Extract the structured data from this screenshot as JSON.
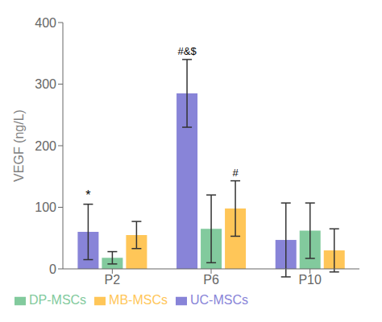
{
  "chart_data": {
    "type": "bar",
    "categories": [
      "P2",
      "P6",
      "P10"
    ],
    "series": [
      {
        "name": "UC-MSCs",
        "color": "#8884d8",
        "values": [
          60,
          285,
          47
        ],
        "errors": [
          45,
          55,
          60
        ]
      },
      {
        "name": "DP-MSCs",
        "color": "#82ca9d",
        "values": [
          18,
          65,
          62
        ],
        "errors": [
          10,
          55,
          45
        ]
      },
      {
        "name": "MB-MSCs",
        "color": "#ffc658",
        "values": [
          55,
          98,
          30
        ],
        "errors": [
          22,
          45,
          35
        ]
      }
    ],
    "annotations": [
      {
        "text": "*",
        "category": "P2",
        "series": "UC-MSCs"
      },
      {
        "text": "#&$",
        "category": "P6",
        "series": "UC-MSCs"
      },
      {
        "text": "#",
        "category": "P6",
        "series": "MB-MSCs"
      }
    ],
    "ylabel": "VEGF (ng/L)",
    "ylim": [
      0,
      400
    ],
    "yticks": [
      0,
      100,
      200,
      300,
      400
    ],
    "grid": false,
    "legend": "bottom"
  }
}
